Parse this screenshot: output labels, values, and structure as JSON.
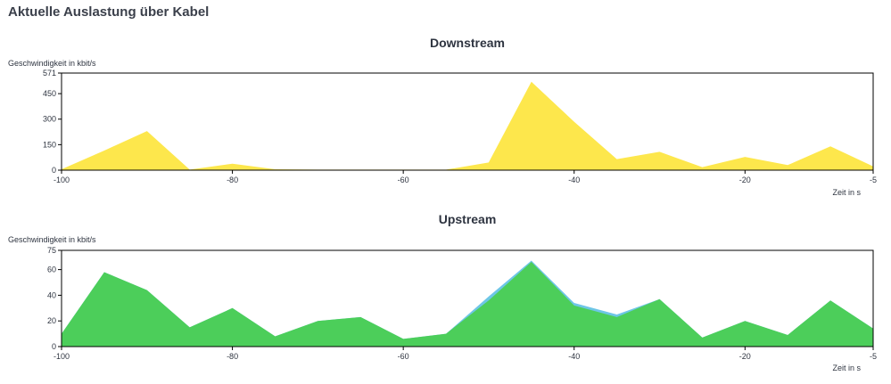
{
  "page": {
    "title": "Aktuelle Auslastung über Kabel"
  },
  "colors": {
    "downstream_fill": "#fde74c",
    "upstream_fill": "#4cce5a",
    "upstream_secondary_fill": "#6ec6e6",
    "axis": "#000000"
  },
  "chart_data": [
    {
      "type": "area",
      "title": "Downstream",
      "ylabel": "Geschwindigkeit in kbit/s",
      "xlabel": "Zeit in s",
      "xlim": [
        -100,
        -5
      ],
      "ylim": [
        0,
        571
      ],
      "xticks": [
        -100,
        -80,
        -60,
        -40,
        -20,
        -5
      ],
      "yticks": [
        0,
        150,
        300,
        450,
        571
      ],
      "grid": false,
      "x": [
        -100,
        -95,
        -90,
        -85,
        -80,
        -75,
        -70,
        -65,
        -60,
        -55,
        -50,
        -45,
        -40,
        -35,
        -30,
        -25,
        -20,
        -15,
        -10,
        -5
      ],
      "series": [
        {
          "color": "#fde74c",
          "values": [
            5,
            115,
            230,
            3,
            38,
            5,
            3,
            3,
            3,
            3,
            45,
            520,
            285,
            65,
            108,
            18,
            78,
            30,
            140,
            22
          ]
        }
      ]
    },
    {
      "type": "area",
      "title": "Upstream",
      "ylabel": "Geschwindigkeit in kbit/s",
      "xlabel": "Zeit in s",
      "xlim": [
        -100,
        -5
      ],
      "ylim": [
        0,
        75
      ],
      "xticks": [
        -100,
        -80,
        -60,
        -40,
        -20,
        -5
      ],
      "yticks": [
        0,
        20,
        40,
        60,
        75
      ],
      "grid": false,
      "x": [
        -100,
        -95,
        -90,
        -85,
        -80,
        -75,
        -70,
        -65,
        -60,
        -55,
        -50,
        -45,
        -40,
        -35,
        -30,
        -25,
        -20,
        -15,
        -10,
        -5
      ],
      "series": [
        {
          "color": "#6ec6e6",
          "values": [
            10,
            58,
            44,
            15,
            30,
            8,
            20,
            23,
            6,
            10,
            39,
            67,
            34,
            25,
            37,
            7,
            20,
            9,
            36,
            14
          ]
        },
        {
          "color": "#4cce5a",
          "values": [
            10,
            58,
            44,
            15,
            30,
            8,
            20,
            23,
            6,
            10,
            36,
            66,
            32,
            23,
            37,
            7,
            20,
            9,
            36,
            14
          ]
        }
      ]
    }
  ]
}
